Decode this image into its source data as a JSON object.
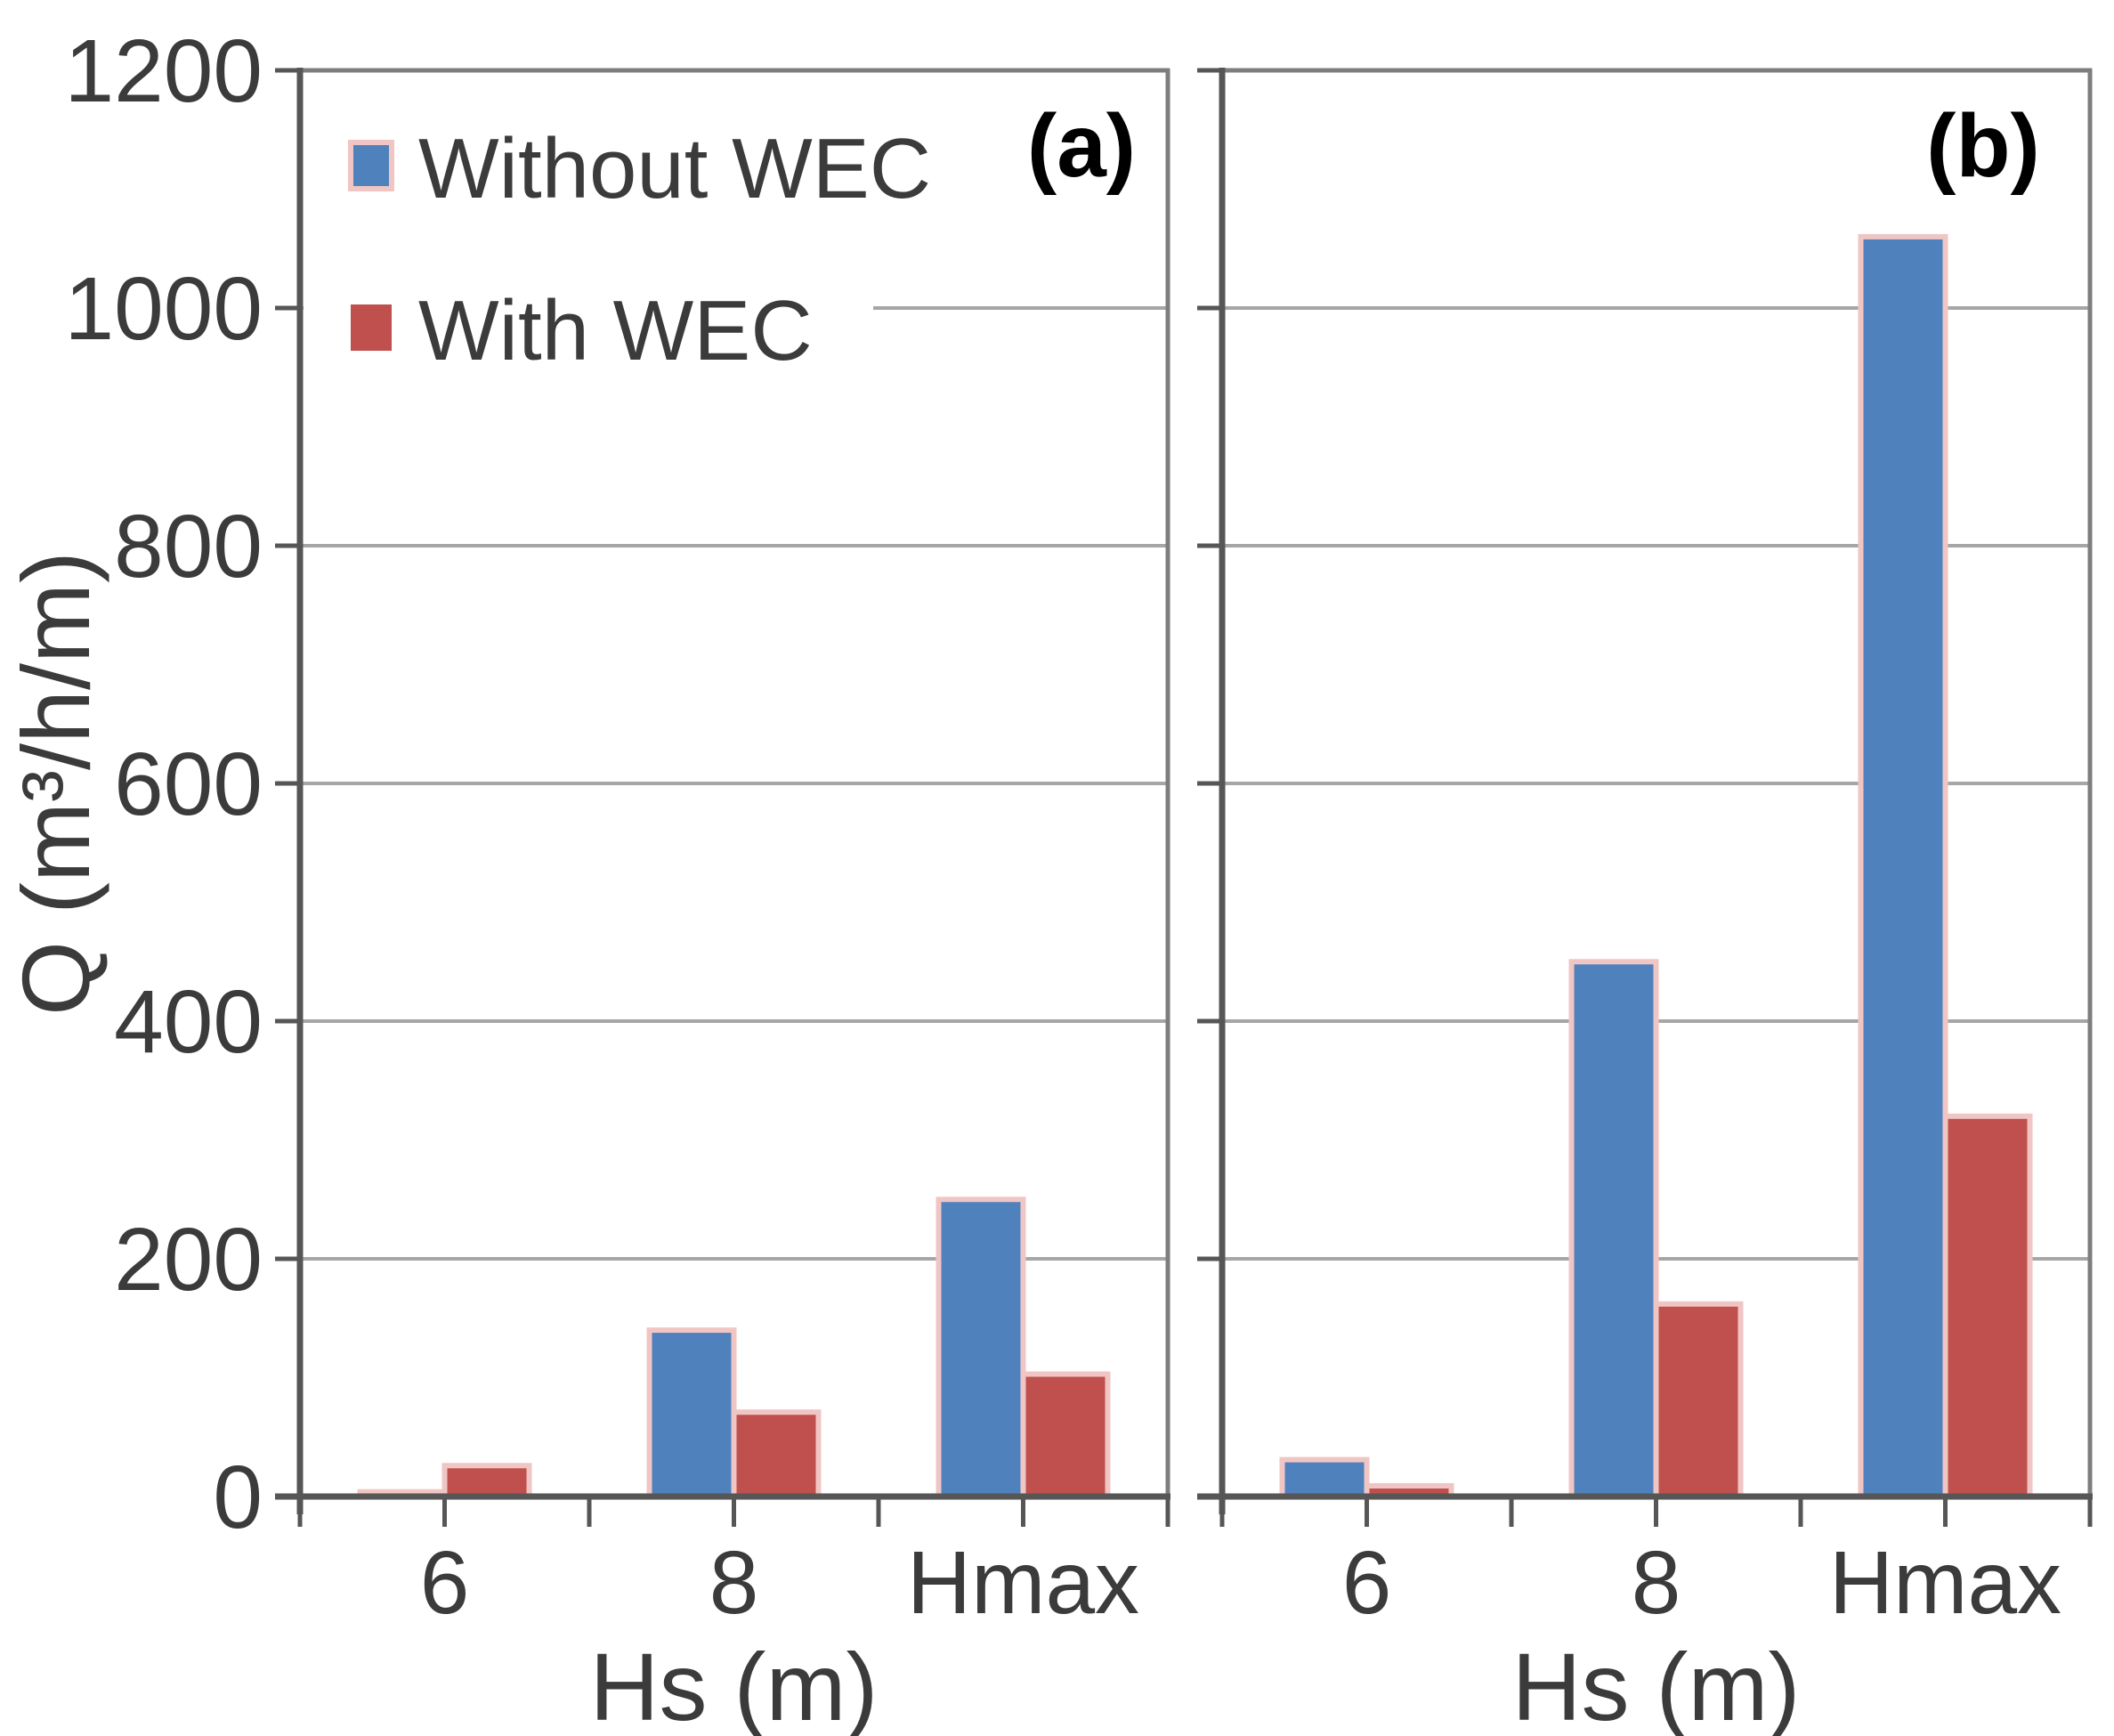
{
  "colors": {
    "without": "#4f81bd",
    "with": "#c0504d",
    "bar_outline": "#f0c6c4",
    "gridline": "#a6a6a6",
    "axis": "#565656",
    "border": "#7d7d7d",
    "tick_text": "#3b3b3b",
    "panel_label_text": "#000000",
    "background": "#ffffff"
  },
  "legend": {
    "items": [
      {
        "label": "Without WEC",
        "key": "without"
      },
      {
        "label": "With WEC",
        "key": "with"
      }
    ]
  },
  "chart_data": [
    {
      "type": "bar",
      "panel_label": "(a)",
      "title": "",
      "xlabel": "Hs (m)",
      "ylabel": "Q (m³/h/m)",
      "categories": [
        "6",
        "8",
        "Hmax"
      ],
      "series": [
        {
          "name": "Without WEC",
          "key": "without",
          "values": [
            4,
            140,
            250
          ]
        },
        {
          "name": "With WEC",
          "key": "with",
          "values": [
            26,
            71,
            103
          ]
        }
      ],
      "ylim": [
        0,
        1200
      ],
      "ytick_step": 200,
      "ytick_labels": [
        "0",
        "200",
        "400",
        "600",
        "800",
        "1000",
        "1200"
      ],
      "grid": true,
      "legend_position": "top-left",
      "show_y_tick_labels": true
    },
    {
      "type": "bar",
      "panel_label": "(b)",
      "title": "",
      "xlabel": "Hs (m)",
      "ylabel": "",
      "categories": [
        "6",
        "8",
        "Hmax"
      ],
      "series": [
        {
          "name": "Without WEC",
          "key": "without",
          "values": [
            31,
            450,
            1060
          ]
        },
        {
          "name": "With WEC",
          "key": "with",
          "values": [
            9,
            162,
            320
          ]
        }
      ],
      "ylim": [
        0,
        1200
      ],
      "ytick_step": 200,
      "ytick_labels": [
        "0",
        "200",
        "400",
        "600",
        "800",
        "1000",
        "1200"
      ],
      "grid": true,
      "legend_position": "none",
      "show_y_tick_labels": false
    }
  ]
}
